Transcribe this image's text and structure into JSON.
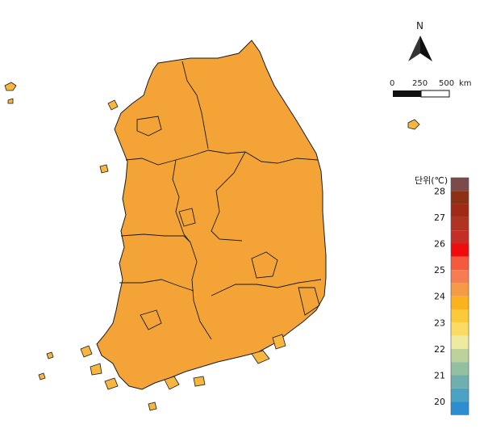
{
  "north_arrow": {
    "label": "N"
  },
  "scale_bar": {
    "labels": [
      "0",
      "250",
      "500"
    ],
    "unit": "km"
  },
  "legend": {
    "title": "단위(℃)",
    "ticks": [
      "28",
      "27",
      "26",
      "25",
      "24",
      "23",
      "22",
      "21",
      "20"
    ],
    "colors": [
      "#7b4a4a",
      "#8c3016",
      "#a12a16",
      "#b23222",
      "#c42e24",
      "#f00c0c",
      "#f45a3c",
      "#f77c52",
      "#f59a46",
      "#fbb21e",
      "#fcc93a",
      "#fbdb64",
      "#eeeaa0",
      "#bcd29a",
      "#92c0a0",
      "#6fb0ae",
      "#4aa2c4",
      "#2c8ed0"
    ]
  },
  "map_colors": {
    "warm_dark": "#d6301e",
    "warm": "#f08040",
    "mid": "#f7b52e",
    "mid_light": "#fbd050",
    "cool_light": "#c4d68e",
    "cool": "#5aa6c8",
    "cool_dark": "#2f86c6"
  }
}
